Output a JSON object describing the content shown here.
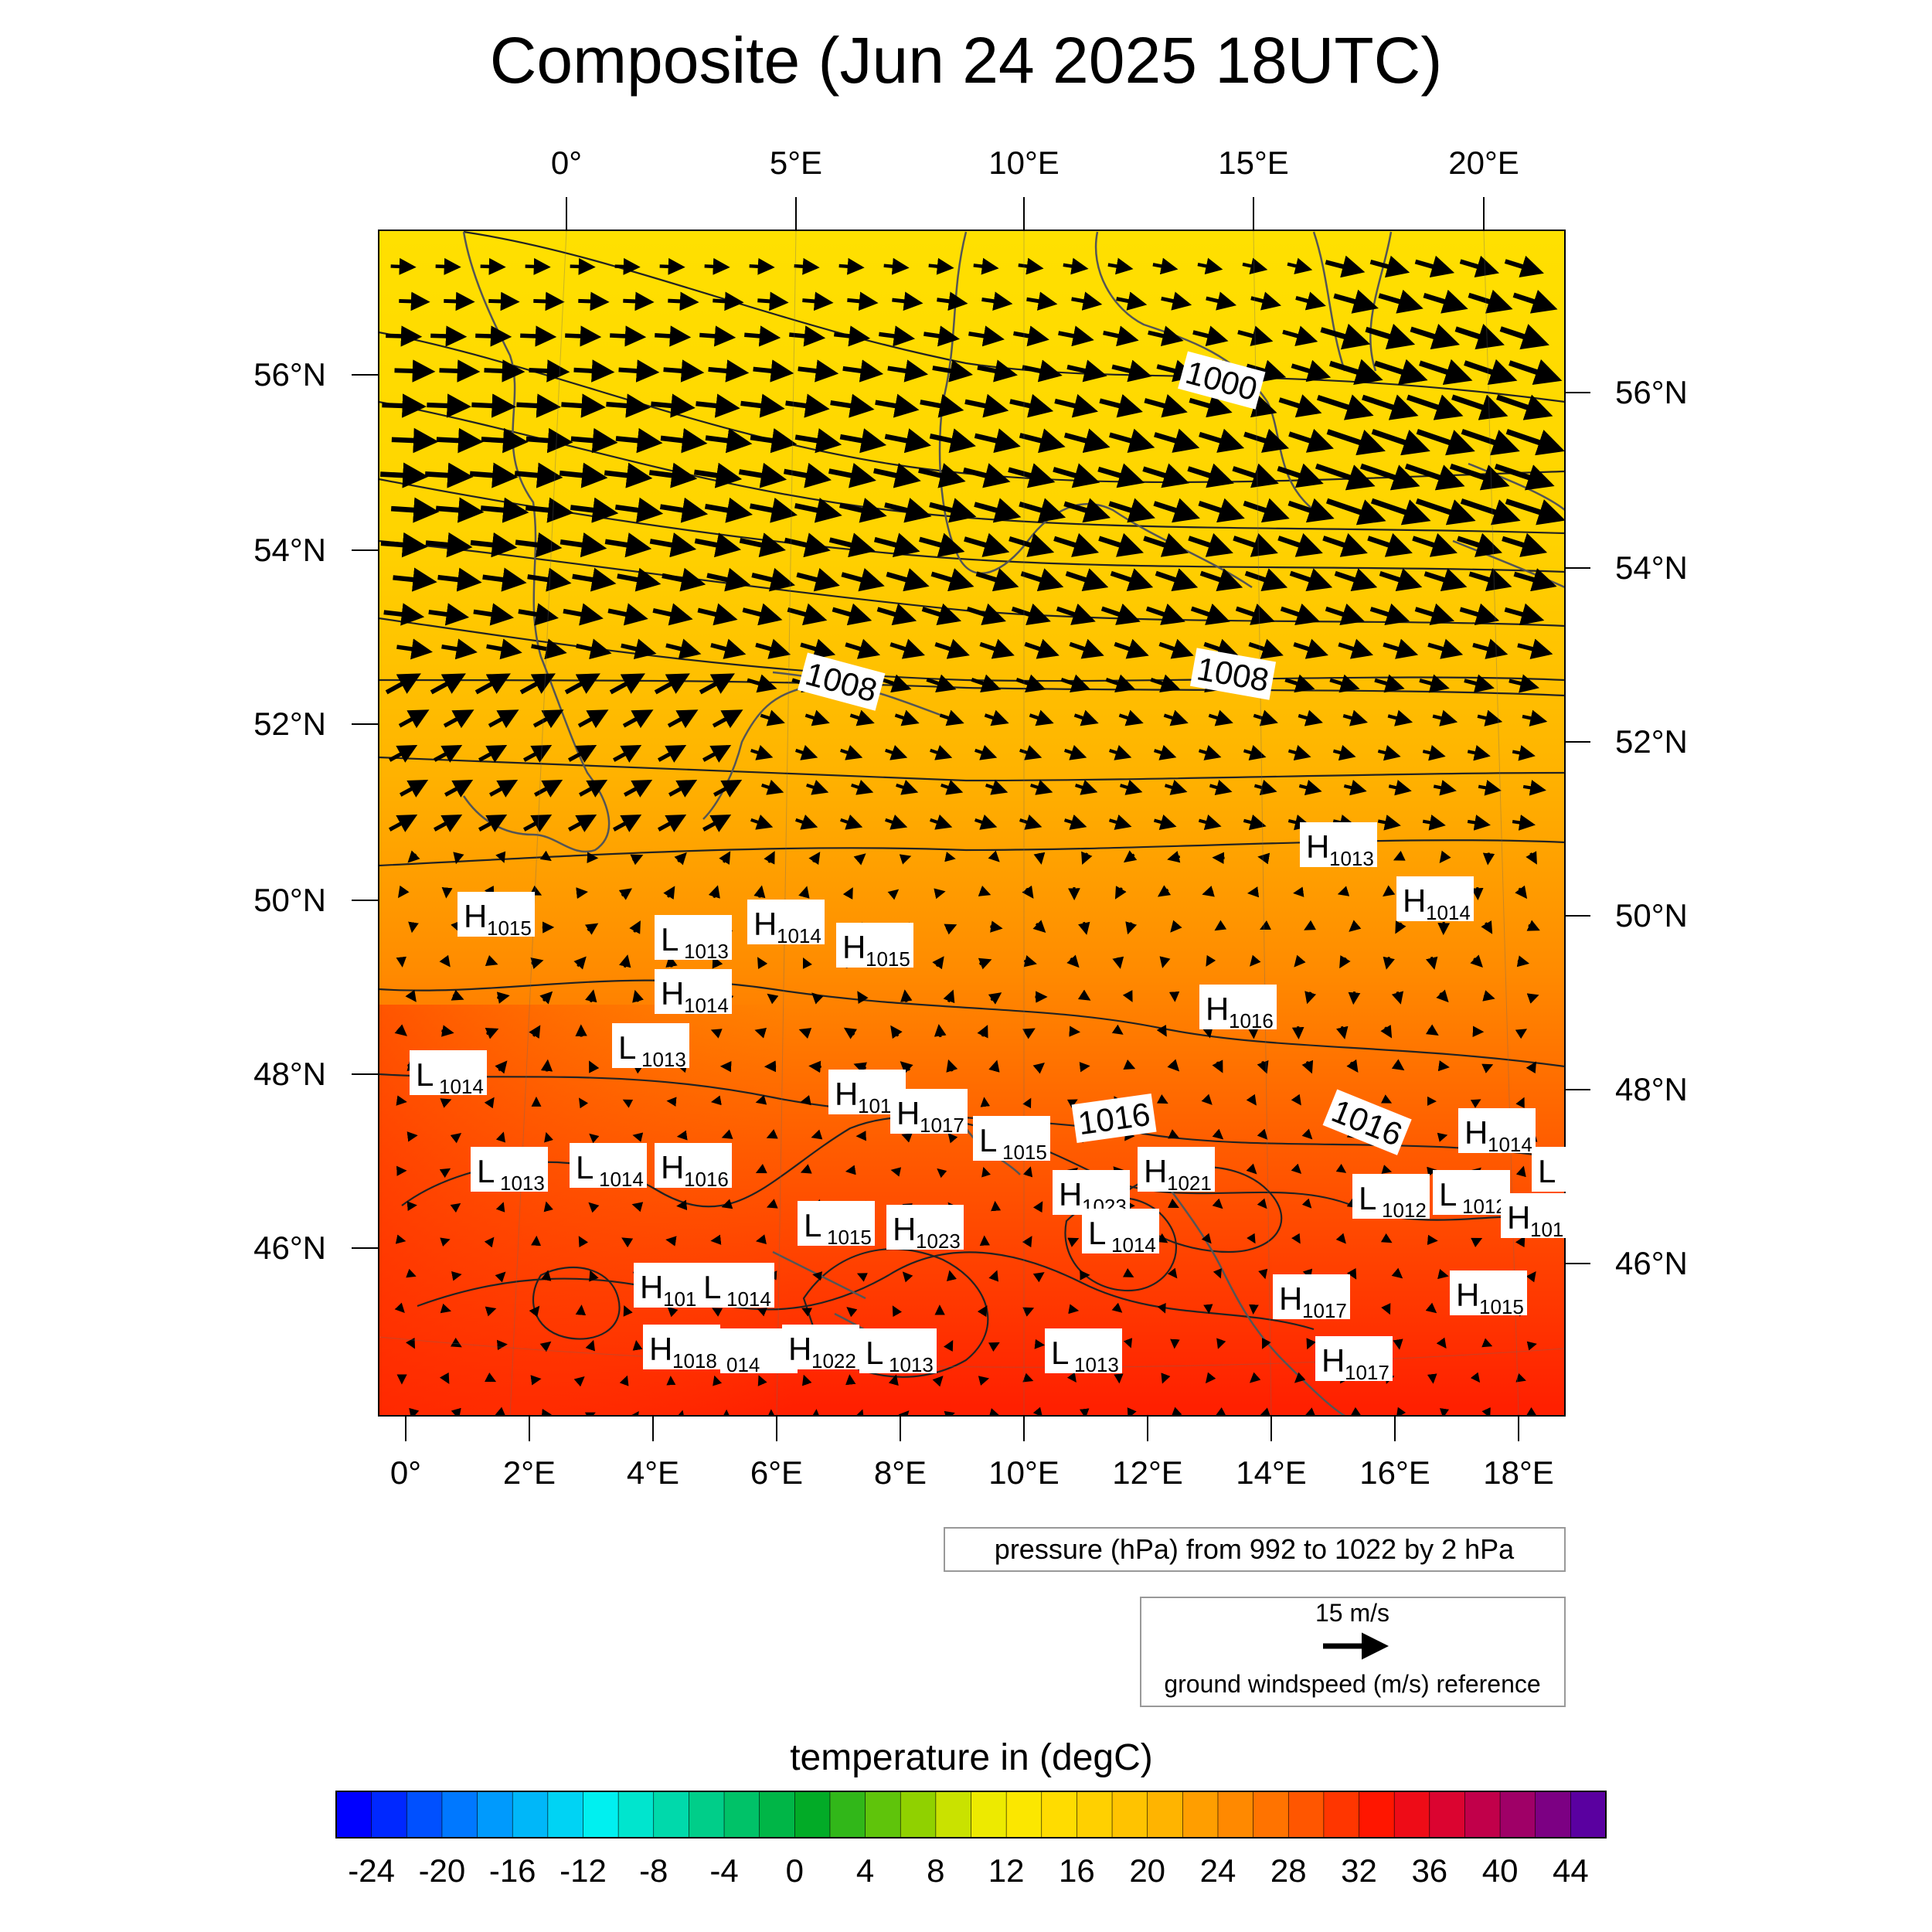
{
  "title": "Composite (Jun 24 2025 18UTC)",
  "top_lon_ticks": [
    "0°",
    "5°E",
    "10°E",
    "15°E",
    "20°E"
  ],
  "bottom_lon_ticks": [
    "0°",
    "2°E",
    "4°E",
    "6°E",
    "8°E",
    "10°E",
    "12°E",
    "14°E",
    "16°E",
    "18°E"
  ],
  "left_lat_ticks": [
    "56°N",
    "54°N",
    "52°N",
    "50°N",
    "48°N",
    "46°N"
  ],
  "right_lat_ticks": [
    "56°N",
    "54°N",
    "52°N",
    "50°N",
    "48°N",
    "46°N"
  ],
  "isobar_labels": [
    "1000",
    "1008",
    "1008",
    "1016",
    "1016"
  ],
  "pressure_centers": [
    {
      "type": "H",
      "value": "1013"
    },
    {
      "type": "H",
      "value": "1014"
    },
    {
      "type": "H",
      "value": "1015"
    },
    {
      "type": "L",
      "value": "1013"
    },
    {
      "type": "H",
      "value": "1014"
    },
    {
      "type": "H",
      "value": "1015"
    },
    {
      "type": "H",
      "value": "1014"
    },
    {
      "type": "H",
      "value": "1016"
    },
    {
      "type": "L",
      "value": "1013"
    },
    {
      "type": "L",
      "value": "1014"
    },
    {
      "type": "H",
      "value": "1017"
    },
    {
      "type": "H",
      "value": "1017"
    },
    {
      "type": "L",
      "value": "1015"
    },
    {
      "type": "H",
      "value": "1014"
    },
    {
      "type": "L",
      "value": "1013"
    },
    {
      "type": "L",
      "value": "1014"
    },
    {
      "type": "H",
      "value": "1016"
    },
    {
      "type": "H",
      "value": "1021"
    },
    {
      "type": "H",
      "value": "1023"
    },
    {
      "type": "L",
      "value": "1012"
    },
    {
      "type": "L",
      "value": "1012"
    },
    {
      "type": "L",
      "value": "1015"
    },
    {
      "type": "H",
      "value": "1023"
    },
    {
      "type": "L",
      "value": "1014"
    },
    {
      "type": "H",
      "value": "101"
    },
    {
      "type": "H",
      "value": "1018"
    },
    {
      "type": "L",
      "value": "1014"
    },
    {
      "type": "H",
      "value": "1017"
    },
    {
      "type": "H",
      "value": "1015"
    },
    {
      "type": "H",
      "value": "1018"
    },
    {
      "type": "",
      "value": "014"
    },
    {
      "type": "H",
      "value": "1022"
    },
    {
      "type": "L",
      "value": "1013"
    },
    {
      "type": "L",
      "value": "1013"
    },
    {
      "type": "H",
      "value": "1017"
    },
    {
      "type": "L",
      "value": ""
    }
  ],
  "pressure_info": "pressure (hPa) from 992 to 1022 by 2 hPa",
  "wind_reference": {
    "speed_label": "15 m/s",
    "description": "ground windspeed (m/s) reference"
  },
  "colorbar": {
    "title": "temperature in (degC)",
    "tick_labels": [
      "-24",
      "-20",
      "-16",
      "-12",
      "-8",
      "-4",
      "0",
      "4",
      "8",
      "12",
      "16",
      "20",
      "24",
      "28",
      "32",
      "36",
      "40",
      "44"
    ],
    "min": -26,
    "max": 46,
    "step": 2
  }
}
